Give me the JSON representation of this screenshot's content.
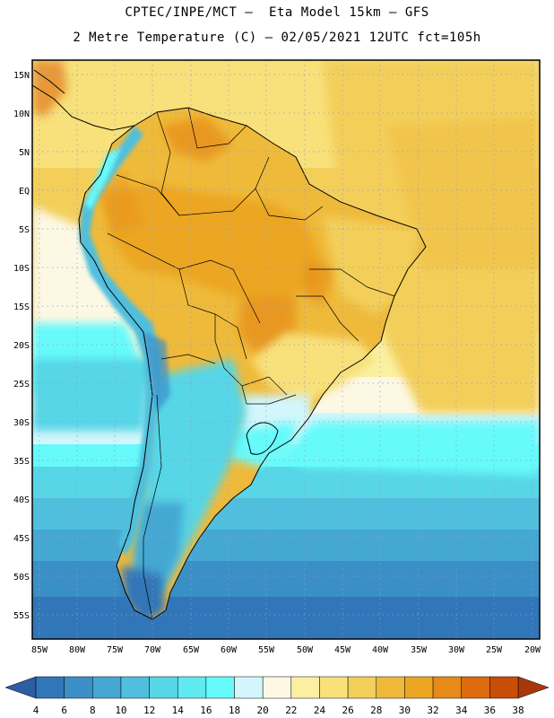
{
  "header": {
    "line1": "CPTEC/INPE/MCT –  Eta Model 15km – GFS",
    "line2": "2 Metre Temperature (C) – 02/05/2021 12UTC fct=105h"
  },
  "map": {
    "lat_labels": [
      "15N",
      "10N",
      "5N",
      "EQ",
      "5S",
      "10S",
      "15S",
      "20S",
      "25S",
      "30S",
      "35S",
      "40S",
      "45S",
      "50S",
      "55S"
    ],
    "lon_labels": [
      "85W",
      "80W",
      "75W",
      "70W",
      "65W",
      "60W",
      "55W",
      "50W",
      "45W",
      "40W",
      "35W",
      "30W",
      "25W",
      "20W"
    ]
  },
  "colorbar": {
    "levels": [
      "4",
      "6",
      "8",
      "10",
      "12",
      "14",
      "16",
      "18",
      "20",
      "22",
      "24",
      "26",
      "28",
      "30",
      "32",
      "34",
      "36",
      "38"
    ],
    "colors": [
      "#2b5ea3",
      "#3176b8",
      "#3a8fc6",
      "#45a8d3",
      "#4fbfdd",
      "#56d6e6",
      "#5eeaf0",
      "#66fafa",
      "#d2f6fb",
      "#fdf8e4",
      "#fbf0a2",
      "#f8e07a",
      "#f3cf5a",
      "#efba3a",
      "#eca623",
      "#e68b17",
      "#dd6b0f",
      "#c84d07",
      "#a8380b"
    ]
  }
}
